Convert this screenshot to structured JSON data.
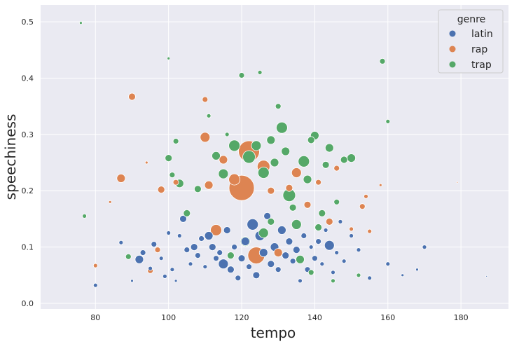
{
  "chart_data": {
    "type": "scatter",
    "title": "",
    "xlabel": "tempo",
    "ylabel": "speechiness",
    "xlim": [
      65,
      193
    ],
    "ylim": [
      -0.01,
      0.53
    ],
    "xticks": [
      80,
      100,
      120,
      140,
      160,
      180
    ],
    "yticks": [
      0.0,
      0.1,
      0.2,
      0.3,
      0.4,
      0.5
    ],
    "ytick_labels": [
      "0.0",
      "0.1",
      "0.2",
      "0.3",
      "0.4",
      "0.5"
    ],
    "grid": true,
    "legend": {
      "title": "genre",
      "position": "top-right",
      "entries": [
        {
          "label": "latin",
          "color": "#4c72b0"
        },
        {
          "label": "rap",
          "color": "#dd8452"
        },
        {
          "label": "trap",
          "color": "#55a868"
        }
      ]
    },
    "colors": {
      "background": "#eaeaf2",
      "grid": "#ffffff",
      "latin": "#4c72b0",
      "rap": "#dd8452",
      "trap": "#55a868"
    },
    "series": [
      {
        "name": "latin",
        "points": [
          [
            80,
            0.032,
            3
          ],
          [
            87,
            0.108,
            3
          ],
          [
            90,
            0.04,
            2
          ],
          [
            92,
            0.078,
            6
          ],
          [
            93,
            0.09,
            4
          ],
          [
            95,
            0.062,
            3
          ],
          [
            96,
            0.105,
            4
          ],
          [
            98,
            0.08,
            3
          ],
          [
            99,
            0.048,
            3
          ],
          [
            100,
            0.125,
            3
          ],
          [
            101,
            0.06,
            3
          ],
          [
            102,
            0.04,
            2
          ],
          [
            103,
            0.12,
            3
          ],
          [
            104,
            0.15,
            5
          ],
          [
            105,
            0.095,
            4
          ],
          [
            106,
            0.07,
            3
          ],
          [
            107,
            0.1,
            5
          ],
          [
            108,
            0.085,
            4
          ],
          [
            109,
            0.115,
            4
          ],
          [
            110,
            0.065,
            3
          ],
          [
            111,
            0.12,
            6
          ],
          [
            112,
            0.1,
            5
          ],
          [
            113,
            0.08,
            4
          ],
          [
            114,
            0.09,
            4
          ],
          [
            115,
            0.07,
            7
          ],
          [
            116,
            0.13,
            5
          ],
          [
            117,
            0.06,
            5
          ],
          [
            118,
            0.1,
            4
          ],
          [
            119,
            0.045,
            4
          ],
          [
            120,
            0.08,
            5
          ],
          [
            121,
            0.11,
            6
          ],
          [
            122,
            0.065,
            4
          ],
          [
            123,
            0.14,
            8
          ],
          [
            124,
            0.05,
            5
          ],
          [
            125,
            0.12,
            7
          ],
          [
            126,
            0.09,
            6
          ],
          [
            127,
            0.155,
            5
          ],
          [
            128,
            0.07,
            5
          ],
          [
            129,
            0.1,
            6
          ],
          [
            130,
            0.06,
            4
          ],
          [
            131,
            0.13,
            6
          ],
          [
            132,
            0.085,
            5
          ],
          [
            133,
            0.11,
            5
          ],
          [
            134,
            0.075,
            4
          ],
          [
            135,
            0.095,
            5
          ],
          [
            136,
            0.04,
            3
          ],
          [
            137,
            0.12,
            4
          ],
          [
            138,
            0.06,
            4
          ],
          [
            139,
            0.1,
            3
          ],
          [
            140,
            0.08,
            4
          ],
          [
            141,
            0.11,
            4
          ],
          [
            142,
            0.07,
            3
          ],
          [
            143,
            0.13,
            3
          ],
          [
            144,
            0.103,
            7
          ],
          [
            145,
            0.055,
            3
          ],
          [
            146,
            0.09,
            3
          ],
          [
            147,
            0.145,
            3
          ],
          [
            148,
            0.075,
            3
          ],
          [
            150,
            0.12,
            3
          ],
          [
            152,
            0.095,
            3
          ],
          [
            155,
            0.045,
            3
          ],
          [
            160,
            0.07,
            3
          ],
          [
            164,
            0.05,
            2
          ],
          [
            168,
            0.06,
            2
          ],
          [
            170,
            0.1,
            3
          ],
          [
            187,
            0.048,
            1
          ]
        ]
      },
      {
        "name": "rap",
        "points": [
          [
            80,
            0.067,
            3
          ],
          [
            87,
            0.222,
            6
          ],
          [
            90,
            0.367,
            5
          ],
          [
            95,
            0.058,
            4
          ],
          [
            97,
            0.095,
            4
          ],
          [
            98,
            0.202,
            5
          ],
          [
            102,
            0.215,
            4
          ],
          [
            110,
            0.295,
            7
          ],
          [
            111,
            0.21,
            6
          ],
          [
            113,
            0.13,
            8
          ],
          [
            115,
            0.255,
            6
          ],
          [
            118,
            0.22,
            8
          ],
          [
            120,
            0.205,
            18
          ],
          [
            122,
            0.27,
            15
          ],
          [
            124,
            0.085,
            12
          ],
          [
            126,
            0.243,
            9
          ],
          [
            128,
            0.2,
            5
          ],
          [
            130,
            0.09,
            6
          ],
          [
            133,
            0.205,
            5
          ],
          [
            135,
            0.232,
            7
          ],
          [
            138,
            0.175,
            5
          ],
          [
            141,
            0.215,
            4
          ],
          [
            144,
            0.145,
            5
          ],
          [
            146,
            0.24,
            4
          ],
          [
            150,
            0.132,
            3
          ],
          [
            153,
            0.172,
            4
          ],
          [
            154,
            0.19,
            3
          ],
          [
            155,
            0.128,
            3
          ],
          [
            158,
            0.21,
            2
          ],
          [
            179,
            0.215,
            1
          ],
          [
            84,
            0.18,
            2
          ],
          [
            94,
            0.25,
            2
          ],
          [
            110,
            0.362,
            4
          ]
        ]
      },
      {
        "name": "trap",
        "points": [
          [
            76,
            0.498,
            2
          ],
          [
            77,
            0.155,
            3
          ],
          [
            89,
            0.083,
            4
          ],
          [
            100,
            0.258,
            5
          ],
          [
            101,
            0.228,
            4
          ],
          [
            102,
            0.288,
            4
          ],
          [
            103,
            0.213,
            6
          ],
          [
            105,
            0.16,
            5
          ],
          [
            108,
            0.203,
            5
          ],
          [
            111,
            0.333,
            3
          ],
          [
            113,
            0.262,
            6
          ],
          [
            115,
            0.23,
            7
          ],
          [
            117,
            0.085,
            5
          ],
          [
            118,
            0.28,
            8
          ],
          [
            120,
            0.405,
            4
          ],
          [
            121,
            0.11,
            7
          ],
          [
            122,
            0.26,
            9
          ],
          [
            124,
            0.28,
            7
          ],
          [
            125,
            0.41,
            3
          ],
          [
            126,
            0.232,
            8
          ],
          [
            128,
            0.145,
            5
          ],
          [
            129,
            0.25,
            6
          ],
          [
            130,
            0.35,
            4
          ],
          [
            131,
            0.312,
            8
          ],
          [
            132,
            0.27,
            6
          ],
          [
            134,
            0.17,
            5
          ],
          [
            135,
            0.14,
            7
          ],
          [
            137,
            0.252,
            8
          ],
          [
            138,
            0.22,
            6
          ],
          [
            139,
            0.29,
            5
          ],
          [
            140,
            0.298,
            6
          ],
          [
            142,
            0.16,
            5
          ],
          [
            143,
            0.246,
            5
          ],
          [
            144,
            0.276,
            6
          ],
          [
            148,
            0.255,
            5
          ],
          [
            150,
            0.258,
            6
          ],
          [
            152,
            0.05,
            3
          ],
          [
            158.5,
            0.43,
            4
          ],
          [
            160,
            0.323,
            3
          ],
          [
            100,
            0.435,
            2
          ],
          [
            136,
            0.078,
            6
          ],
          [
            139,
            0.055,
            4
          ],
          [
            141,
            0.135,
            5
          ],
          [
            145,
            0.04,
            3
          ],
          [
            133,
            0.192,
            9
          ],
          [
            126,
            0.125,
            7
          ],
          [
            128,
            0.29,
            6
          ],
          [
            146,
            0.18,
            4
          ],
          [
            116,
            0.3,
            3
          ]
        ]
      }
    ]
  }
}
